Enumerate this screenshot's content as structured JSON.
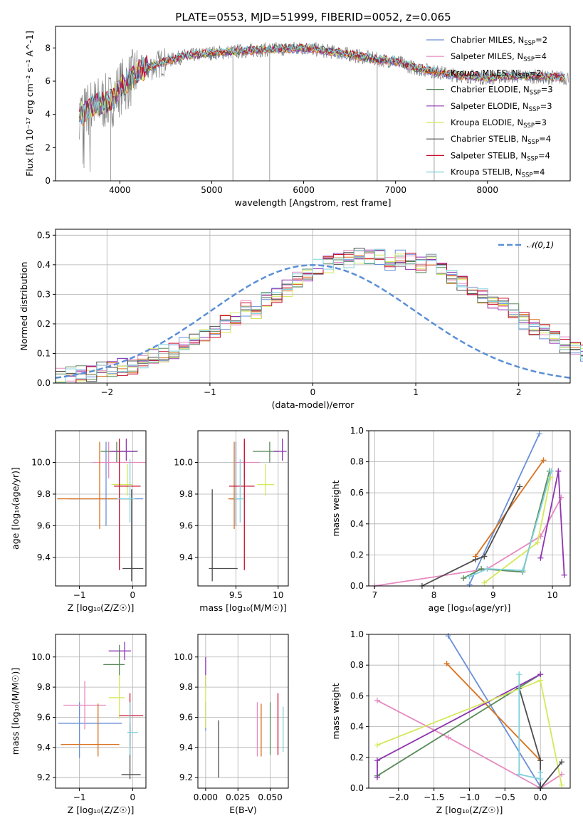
{
  "title": "PLATE=0553, MJD=51999, FIBERID=0052, z=0.065",
  "models": [
    {
      "name": "Chabrier MILES, N_SSP=2",
      "color": "#6a8fd8"
    },
    {
      "name": "Salpeter MILES, N_SSP=4",
      "color": "#e58ac0"
    },
    {
      "name": "Kroupa MILES, N_SSP=2",
      "color": "#d9711d"
    },
    {
      "name": "Chabrier ELODIE, N_SSP=3",
      "color": "#5b8b5b"
    },
    {
      "name": "Salpeter ELODIE, N_SSP=3",
      "color": "#8e35b0"
    },
    {
      "name": "Kroupa ELODIE, N_SSP=3",
      "color": "#d5e85a"
    },
    {
      "name": "Chabrier STELIB, N_SSP=4",
      "color": "#4d4d4d"
    },
    {
      "name": "Salpeter STELIB, N_SSP=4",
      "color": "#c8102e"
    },
    {
      "name": "Kroupa STELIB, N_SSP=4",
      "color": "#7fd2dc"
    }
  ],
  "chart_data": [
    {
      "id": "spectrum",
      "type": "line",
      "xlabel": "wavelength [Angstrom, rest frame]",
      "ylabel": "Flux [f_λ 10^-17 erg cm^-2 s^-1 A^-1]",
      "xlim": [
        3300,
        8900
      ],
      "ylim": [
        0,
        9.3
      ],
      "xticks": [
        4000,
        5000,
        6000,
        7000,
        8000
      ],
      "yticks": [
        0,
        2,
        4,
        6,
        8
      ],
      "continuum_x": [
        3550,
        3600,
        3700,
        3800,
        3900,
        4000,
        4100,
        4200,
        4300,
        4500,
        4700,
        5000,
        5300,
        5600,
        6000,
        6400,
        6600,
        6800,
        7000,
        7200,
        7400,
        7600,
        7800,
        8000,
        8200,
        8400,
        8850
      ],
      "continuum_y": [
        4.3,
        4.0,
        4.5,
        4.7,
        4.8,
        5.6,
        6.0,
        6.6,
        6.8,
        7.2,
        7.5,
        7.7,
        7.8,
        7.9,
        8.0,
        7.7,
        7.5,
        7.3,
        7.2,
        6.8,
        6.6,
        6.4,
        6.3,
        6.2,
        6.3,
        6.3,
        6.2
      ],
      "legend": "top-right"
    },
    {
      "id": "residuals",
      "type": "histogram",
      "xlabel": "(data-model)/error",
      "ylabel": "Normed distribution",
      "xlim": [
        -2.5,
        2.5
      ],
      "ylim": [
        0,
        0.52
      ],
      "xticks": [
        -2,
        -1,
        0,
        1,
        2
      ],
      "yticks": [
        0.0,
        0.1,
        0.2,
        0.3,
        0.4,
        0.5
      ],
      "bin_edges_from": -2.5,
      "bin_width": 0.1,
      "reference": {
        "name": "𝒩(0,1)",
        "color": "#5b8fd6"
      },
      "envelope": [
        0.02,
        0.025,
        0.03,
        0.035,
        0.045,
        0.05,
        0.055,
        0.06,
        0.075,
        0.09,
        0.1,
        0.11,
        0.13,
        0.14,
        0.16,
        0.18,
        0.2,
        0.22,
        0.25,
        0.24,
        0.28,
        0.3,
        0.32,
        0.35,
        0.37,
        0.39,
        0.4,
        0.41,
        0.42,
        0.43,
        0.42,
        0.43,
        0.41,
        0.42,
        0.41,
        0.4,
        0.41,
        0.38,
        0.36,
        0.34,
        0.32,
        0.3,
        0.28,
        0.26,
        0.24,
        0.21,
        0.19,
        0.17,
        0.15,
        0.13,
        0.12,
        0.1,
        0.08,
        0.07,
        0.06,
        0.05,
        0.045,
        0.04,
        0.03,
        0.025
      ]
    },
    {
      "id": "age_vs_z",
      "type": "errorbar",
      "xlabel": "Z [log10(Z/Z☉)]",
      "ylabel": "age  [log10(age/yr)]",
      "xlim": [
        -1.45,
        0.25
      ],
      "ylim": [
        9.22,
        10.2
      ],
      "xticks": [
        -1,
        0
      ],
      "yticks": [
        9.4,
        9.6,
        9.8,
        10.0
      ],
      "points": [
        {
          "x": -0.5,
          "y": 9.77,
          "xerr": [
            0.7,
            0.7
          ],
          "yerr": [
            0.17,
            0.36
          ]
        },
        {
          "x": -0.45,
          "y": 10.0,
          "xerr": [
            0.3,
            0.7
          ],
          "yerr": [
            0.1,
            0.13
          ]
        },
        {
          "x": -0.62,
          "y": 9.77,
          "xerr": [
            0.8,
            0.6
          ],
          "yerr": [
            0.19,
            0.36
          ]
        },
        {
          "x": -0.3,
          "y": 10.07,
          "xerr": [
            0.3,
            0.4
          ],
          "yerr": [
            0.07,
            0.06
          ]
        },
        {
          "x": -0.12,
          "y": 10.07,
          "xerr": [
            0.3,
            0.2
          ],
          "yerr": [
            0.06,
            0.08
          ]
        },
        {
          "x": -0.1,
          "y": 9.86,
          "xerr": [
            0.3,
            0.1
          ],
          "yerr": [
            0.07,
            0.13
          ]
        },
        {
          "x": -0.02,
          "y": 9.33,
          "xerr": [
            0.17,
            0.22
          ],
          "yerr": [
            0.08,
            0.5
          ]
        },
        {
          "x": -0.25,
          "y": 9.85,
          "xerr": [
            0.1,
            0.4
          ],
          "yerr": [
            0.53,
            0.3
          ]
        },
        {
          "x": -0.05,
          "y": 9.77,
          "xerr": [
            0.25,
            0.1
          ],
          "yerr": [
            0.15,
            0.25
          ]
        }
      ]
    },
    {
      "id": "age_vs_mass",
      "type": "errorbar",
      "xlabel": "mass [log10(M/M☉)]",
      "ylabel": "",
      "xlim": [
        9.05,
        10.12
      ],
      "ylim": [
        9.22,
        10.2
      ],
      "xticks": [
        9.5,
        10.0
      ],
      "yticks": [
        9.4,
        9.6,
        9.8,
        10.0
      ],
      "points": [
        {
          "x": 9.5,
          "y": 9.77,
          "xerr": [
            0.07,
            0.05
          ],
          "yerr": [
            0.17,
            0.36
          ]
        },
        {
          "x": 9.6,
          "y": 10.0,
          "xerr": [
            0.1,
            0.18
          ],
          "yerr": [
            0.1,
            0.13
          ]
        },
        {
          "x": 9.48,
          "y": 9.77,
          "xerr": [
            0.07,
            0.05
          ],
          "yerr": [
            0.19,
            0.36
          ]
        },
        {
          "x": 9.9,
          "y": 10.07,
          "xerr": [
            0.2,
            0.1
          ],
          "yerr": [
            0.07,
            0.06
          ]
        },
        {
          "x": 10.05,
          "y": 10.07,
          "xerr": [
            0.1,
            0.05
          ],
          "yerr": [
            0.06,
            0.08
          ]
        },
        {
          "x": 9.85,
          "y": 9.86,
          "xerr": [
            0.1,
            0.1
          ],
          "yerr": [
            0.07,
            0.13
          ]
        },
        {
          "x": 9.22,
          "y": 9.33,
          "xerr": [
            0.04,
            0.3
          ],
          "yerr": [
            0.08,
            0.5
          ]
        },
        {
          "x": 9.6,
          "y": 9.85,
          "xerr": [
            0.18,
            0.12
          ],
          "yerr": [
            0.53,
            0.3
          ]
        },
        {
          "x": 9.55,
          "y": 9.77,
          "xerr": [
            0.07,
            0.04
          ],
          "yerr": [
            0.15,
            0.25
          ]
        }
      ]
    },
    {
      "id": "weight_vs_age",
      "type": "line",
      "xlabel": "age  [log10(age/yr)]",
      "ylabel": "mass weight",
      "xlim": [
        6.9,
        10.3
      ],
      "ylim": [
        0,
        1.0
      ],
      "xticks": [
        7,
        8,
        9,
        10
      ],
      "yticks": [
        0.0,
        0.2,
        0.4,
        0.6,
        0.8,
        1.0
      ],
      "series": [
        {
          "x": [
            8.6,
            9.78
          ],
          "y": [
            0.01,
            0.98
          ]
        },
        {
          "x": [
            7.0,
            8.9,
            9.8,
            10.15
          ],
          "y": [
            0.0,
            0.11,
            0.32,
            0.57
          ]
        },
        {
          "x": [
            8.7,
            9.85
          ],
          "y": [
            0.19,
            0.81
          ]
        },
        {
          "x": [
            8.5,
            8.8,
            9.5,
            9.95
          ],
          "y": [
            0.05,
            0.11,
            0.09,
            0.74
          ]
        },
        {
          "x": [
            9.8,
            10.1,
            10.2
          ],
          "y": [
            0.18,
            0.74,
            0.07
          ]
        },
        {
          "x": [
            8.85,
            9.75,
            9.97
          ],
          "y": [
            0.02,
            0.28,
            0.7
          ]
        },
        {
          "x": [
            7.8,
            8.7,
            8.85,
            9.45
          ],
          "y": [
            0.0,
            0.17,
            0.19,
            0.64
          ]
        },
        {
          "x": [],
          "y": []
        },
        {
          "x": [
            8.6,
            8.9,
            9.5,
            9.98
          ],
          "y": [
            0.06,
            0.11,
            0.1,
            0.74
          ]
        }
      ]
    },
    {
      "id": "mass_vs_z",
      "type": "errorbar",
      "xlabel": "Z [log10(Z/Z☉)]",
      "ylabel": "mass [log10(M/M☉)]",
      "xlim": [
        -1.45,
        0.25
      ],
      "ylim": [
        9.13,
        10.15
      ],
      "xticks": [
        -1,
        0
      ],
      "yticks": [
        9.2,
        9.4,
        9.6,
        9.8,
        10.0
      ],
      "points": [
        {
          "x": -1.0,
          "y": 9.56,
          "xerr": [
            0.4,
            0.8
          ],
          "yerr": [
            0.23,
            0.14
          ]
        },
        {
          "x": -0.9,
          "y": 9.68,
          "xerr": [
            0.4,
            0.4
          ],
          "yerr": [
            0.16,
            0.16
          ]
        },
        {
          "x": -0.65,
          "y": 9.42,
          "xerr": [
            0.7,
            0.4
          ],
          "yerr": [
            0.08,
            0.27
          ]
        },
        {
          "x": -0.25,
          "y": 9.95,
          "xerr": [
            0.3,
            0.1
          ],
          "yerr": [
            0.08,
            0.13
          ]
        },
        {
          "x": -0.15,
          "y": 10.04,
          "xerr": [
            0.3,
            0.12
          ],
          "yerr": [
            0.06,
            0.06
          ]
        },
        {
          "x": -0.25,
          "y": 9.73,
          "xerr": [
            0.2,
            0.1
          ],
          "yerr": [
            0.14,
            0.15
          ]
        },
        {
          "x": -0.05,
          "y": 9.22,
          "xerr": [
            0.16,
            0.2
          ],
          "yerr": [
            0.03,
            0.34
          ]
        },
        {
          "x": -0.05,
          "y": 9.61,
          "xerr": [
            0.2,
            0.25
          ],
          "yerr": [
            0.2,
            0.15
          ]
        },
        {
          "x": -0.05,
          "y": 9.5,
          "xerr": [
            0.05,
            0.15
          ],
          "yerr": [
            0.15,
            0.2
          ]
        }
      ]
    },
    {
      "id": "mass_vs_ebv",
      "type": "errorbar",
      "xlabel": "E(B-V)",
      "ylabel": "",
      "xlim": [
        -0.006,
        0.064
      ],
      "ylim": [
        9.13,
        10.15
      ],
      "xticks": [
        0.0,
        0.025,
        0.05
      ],
      "xticklabels": [
        "0.000",
        "0.025",
        "0.050"
      ],
      "yticks": [
        9.2,
        9.4,
        9.6,
        9.8,
        10.0
      ],
      "points": [
        {
          "x": 0.0,
          "y": 9.56,
          "xerr": [
            0,
            0
          ],
          "yerr": [
            0.05,
            0.14
          ]
        },
        {
          "x": 0.04,
          "y": 9.52,
          "xerr": [
            0,
            0
          ],
          "yerr": [
            0.18,
            0.18
          ]
        },
        {
          "x": 0.043,
          "y": 9.51,
          "xerr": [
            0,
            0
          ],
          "yerr": [
            0.17,
            0.18
          ]
        },
        {
          "x": 0.05,
          "y": 9.5,
          "xerr": [
            0,
            0
          ],
          "yerr": [
            0.15,
            0.2
          ]
        },
        {
          "x": 0.0,
          "y": 9.9,
          "xerr": [
            0,
            0
          ],
          "yerr": [
            0.1,
            0.1
          ]
        },
        {
          "x": 0.0,
          "y": 9.7,
          "xerr": [
            0,
            0
          ],
          "yerr": [
            0.17,
            0.18
          ]
        },
        {
          "x": 0.01,
          "y": 9.38,
          "xerr": [
            0,
            0
          ],
          "yerr": [
            0.18,
            0.2
          ]
        },
        {
          "x": 0.056,
          "y": 9.55,
          "xerr": [
            0,
            0
          ],
          "yerr": [
            0.2,
            0.21
          ]
        },
        {
          "x": 0.06,
          "y": 9.5,
          "xerr": [
            0,
            0
          ],
          "yerr": [
            0.13,
            0.17
          ]
        }
      ]
    },
    {
      "id": "weight_vs_z",
      "type": "line",
      "xlabel": "Z [log10(Z/Z☉)]",
      "ylabel": "mass weight",
      "xlim": [
        -2.42,
        0.42
      ],
      "ylim": [
        0,
        1.0
      ],
      "xticks": [
        -2.0,
        -1.5,
        -1.0,
        -0.5,
        0.0
      ],
      "xticklabels": [
        "−2.0",
        "−1.5",
        "−1.0",
        "−0.5",
        "0.0"
      ],
      "yticks": [
        0.0,
        0.2,
        0.4,
        0.6,
        0.8,
        1.0
      ],
      "series": [
        {
          "x": [
            -1.3,
            0.0
          ],
          "y": [
            0.99,
            0.01
          ]
        },
        {
          "x": [
            -2.3,
            -1.3,
            0.0,
            0.3
          ],
          "y": [
            0.57,
            0.33,
            0.0,
            0.09
          ]
        },
        {
          "x": [
            -1.32,
            0.0
          ],
          "y": [
            0.81,
            0.18
          ]
        },
        {
          "x": [
            -2.3,
            0.0
          ],
          "y": [
            0.08,
            0.74
          ]
        },
        {
          "x": [
            -2.3,
            -2.3,
            0.0
          ],
          "y": [
            0.07,
            0.18,
            0.74
          ]
        },
        {
          "x": [
            -2.3,
            0.0,
            0.3
          ],
          "y": [
            0.28,
            0.7,
            0.02
          ]
        },
        {
          "x": [
            -0.3,
            0.0,
            0.0,
            0.3
          ],
          "y": [
            0.65,
            0.18,
            0.0,
            0.17
          ]
        },
        {
          "x": [],
          "y": []
        },
        {
          "x": [
            -0.3,
            -0.3,
            0.0,
            0.0
          ],
          "y": [
            0.74,
            0.09,
            0.06,
            0.1
          ]
        }
      ]
    }
  ]
}
